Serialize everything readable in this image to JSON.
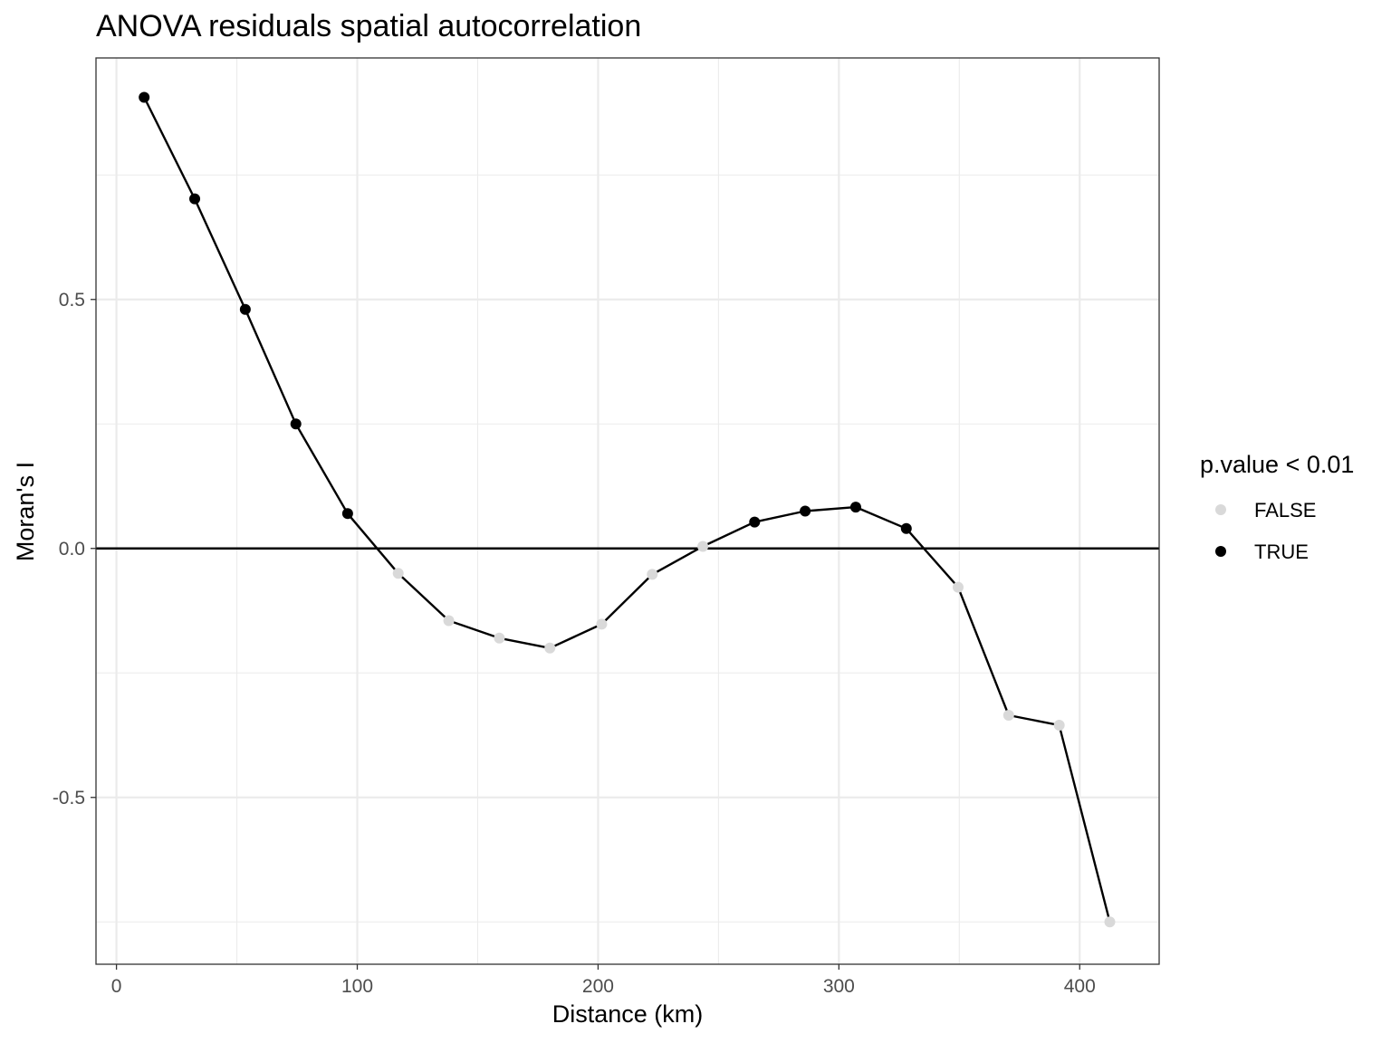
{
  "chart_data": {
    "type": "line",
    "title": "ANOVA residuals spatial autocorrelation",
    "xlabel": "Distance (km)",
    "ylabel": "Moran's I",
    "xlim": [
      -8.5,
      433
    ],
    "ylim": [
      -0.835,
      0.985
    ],
    "x_ticks": [
      0,
      100,
      200,
      300,
      400
    ],
    "x_tick_labels": [
      "0",
      "100",
      "200",
      "300",
      "400"
    ],
    "y_ticks": [
      -0.5,
      0.0,
      0.5
    ],
    "y_tick_labels": [
      "-0.5",
      "0.0",
      "0.5"
    ],
    "x_minor": [
      50,
      150,
      250,
      350
    ],
    "y_minor": [
      -0.75,
      -0.25,
      0.25,
      0.75
    ],
    "hline": 0,
    "grid": true,
    "legend": {
      "title": "p.value < 0.01",
      "position": "right",
      "entries": [
        {
          "label": "FALSE",
          "color": "#d9d9d9"
        },
        {
          "label": "TRUE",
          "color": "#000000"
        }
      ]
    },
    "colors": {
      "false_point": "#d9d9d9",
      "true_point": "#000000",
      "line": "#000000"
    },
    "points": [
      {
        "x": 11.5,
        "y": 0.906,
        "significant": true
      },
      {
        "x": 32.5,
        "y": 0.702,
        "significant": true
      },
      {
        "x": 53.5,
        "y": 0.48,
        "significant": true
      },
      {
        "x": 74.5,
        "y": 0.25,
        "significant": true
      },
      {
        "x": 96,
        "y": 0.07,
        "significant": true
      },
      {
        "x": 117,
        "y": -0.05,
        "significant": false
      },
      {
        "x": 138,
        "y": -0.145,
        "significant": false
      },
      {
        "x": 159,
        "y": -0.18,
        "significant": false
      },
      {
        "x": 180,
        "y": -0.2,
        "significant": false
      },
      {
        "x": 201.5,
        "y": -0.152,
        "significant": false
      },
      {
        "x": 222.5,
        "y": -0.052,
        "significant": false
      },
      {
        "x": 243.5,
        "y": 0.004,
        "significant": false
      },
      {
        "x": 265,
        "y": 0.053,
        "significant": true
      },
      {
        "x": 286,
        "y": 0.075,
        "significant": true
      },
      {
        "x": 307,
        "y": 0.083,
        "significant": true
      },
      {
        "x": 328,
        "y": 0.04,
        "significant": true
      },
      {
        "x": 349.5,
        "y": -0.078,
        "significant": false
      },
      {
        "x": 370.5,
        "y": -0.335,
        "significant": false
      },
      {
        "x": 391.5,
        "y": -0.355,
        "significant": false
      },
      {
        "x": 412.5,
        "y": -0.75,
        "significant": false
      }
    ]
  }
}
